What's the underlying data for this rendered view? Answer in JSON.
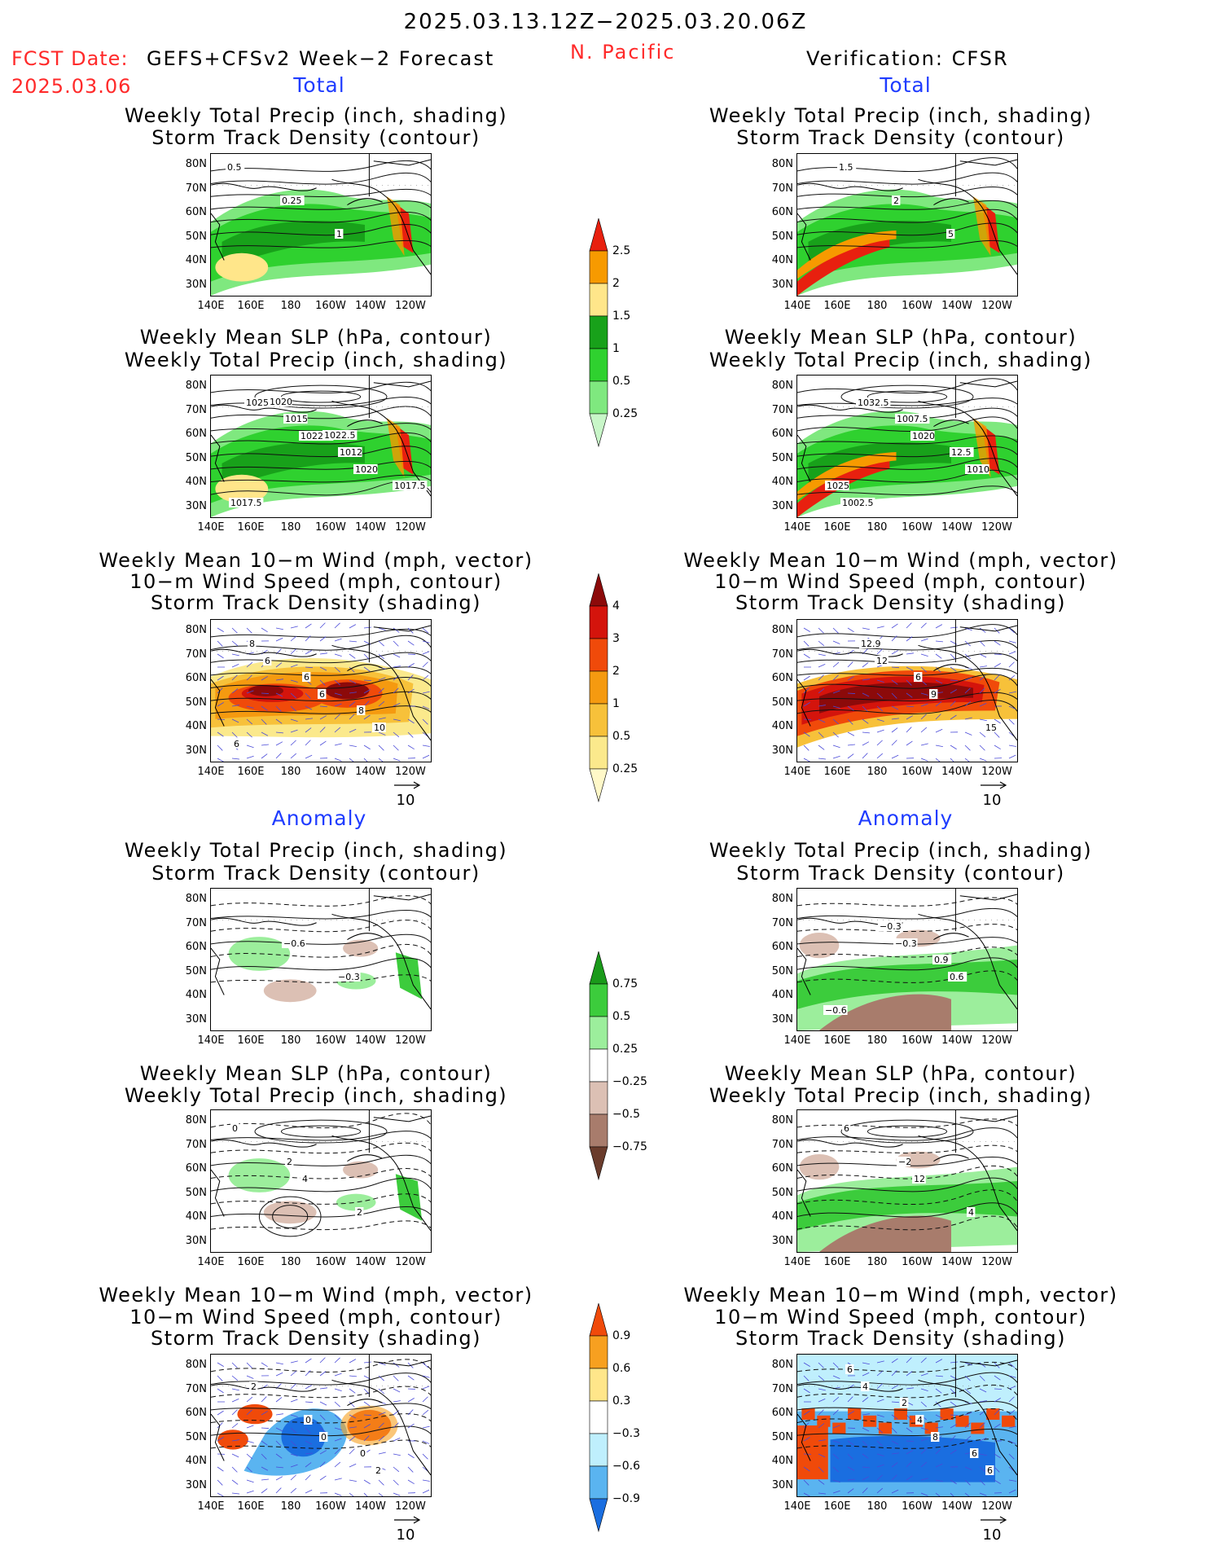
{
  "header": {
    "date_range": "2025.03.13.12Z−2025.03.20.06Z",
    "fcst_label": "FCST Date:",
    "fcst_model": "GEFS+CFSv2 Week−2 Forecast",
    "fcst_date": "2025.03.06",
    "region": "N. Pacific",
    "verification": "Verification: CFSR"
  },
  "sections": {
    "total": "Total",
    "anomaly": "Anomaly"
  },
  "panel_titles": {
    "precip_storm": [
      "Weekly Total Precip (inch, shading)",
      "Storm Track Density (contour)"
    ],
    "slp_precip": [
      "Weekly Mean SLP (hPa, contour)",
      "Weekly Total Precip (inch, shading)"
    ],
    "wind_storm": [
      "Weekly Mean 10−m Wind (mph, vector)",
      "10−m Wind Speed (mph, contour)",
      "Storm Track Density (shading)"
    ]
  },
  "axes": {
    "lat_labels": [
      "80N",
      "70N",
      "60N",
      "50N",
      "40N",
      "30N"
    ],
    "lon_labels": [
      "140E",
      "160E",
      "180",
      "160W",
      "140W",
      "120W"
    ]
  },
  "vector_ref": "10",
  "colorbars": {
    "precip_total": {
      "labels": [
        "2.5",
        "2",
        "1.5",
        "1",
        "0.5",
        "0.25"
      ],
      "colors": [
        "#e8200f",
        "#f79a00",
        "#ffe68a",
        "#18a11a",
        "#2fd12f",
        "#7fe87f",
        "#c8f6c8"
      ]
    },
    "storm_total": {
      "labels": [
        "4",
        "3",
        "2",
        "1",
        "0.5",
        "0.25"
      ],
      "colors": [
        "#8c0a0a",
        "#d4140c",
        "#f04a0a",
        "#f59a10",
        "#f7c13a",
        "#fbe98c",
        "#fff8c8"
      ]
    },
    "precip_anom": {
      "labels": [
        "0.75",
        "0.5",
        "0.25",
        "−0.25",
        "−0.5",
        "−0.75"
      ],
      "colors": [
        "#1a9a1a",
        "#3ccc3c",
        "#9cee9c",
        "#ffffff",
        "#dcc0b4",
        "#a87c6c",
        "#6a3c2c"
      ]
    },
    "storm_anom": {
      "labels": [
        "0.9",
        "0.6",
        "0.3",
        "−0.3",
        "−0.6",
        "−0.9"
      ],
      "colors": [
        "#f04a0a",
        "#f7a020",
        "#ffe68a",
        "#ffffff",
        "#bfeffd",
        "#5ab4f0",
        "#1a6ee0"
      ]
    }
  },
  "contour_labels": {
    "fc_precip_storm": [
      "0.5",
      "0.25",
      "1"
    ],
    "vf_precip_storm": [
      "1.5",
      "2",
      "5"
    ],
    "fc_slp": [
      "1025",
      "1022.5",
      "1020",
      "1017.5",
      "1015",
      "1012",
      "1017.5",
      "1020",
      "1022.5"
    ],
    "vf_slp": [
      "1032.5",
      "1020",
      "1010",
      "1002.5",
      "1007.5",
      "12.5",
      "1025"
    ],
    "fc_wind": [
      "6",
      "6",
      "10",
      "8",
      "6",
      "8",
      "6"
    ],
    "vf_wind": [
      "12",
      "9",
      "15",
      "12.9",
      "6"
    ],
    "fc_anom_precip": [
      "−0.6",
      "−0.3"
    ],
    "vf_anom_precip": [
      "−0.3",
      "0.6",
      "−0.6",
      "−0.3",
      "0.9"
    ],
    "fc_anom_slp": [
      "4",
      "2",
      "0",
      "2"
    ],
    "vf_anom_slp": [
      "12",
      "4",
      "6",
      "−2"
    ],
    "fc_anom_wind": [
      "0",
      "2",
      "2",
      "0",
      "0"
    ],
    "vf_anom_wind": [
      "8",
      "6",
      "4",
      "4",
      "6",
      "6",
      "2"
    ]
  }
}
